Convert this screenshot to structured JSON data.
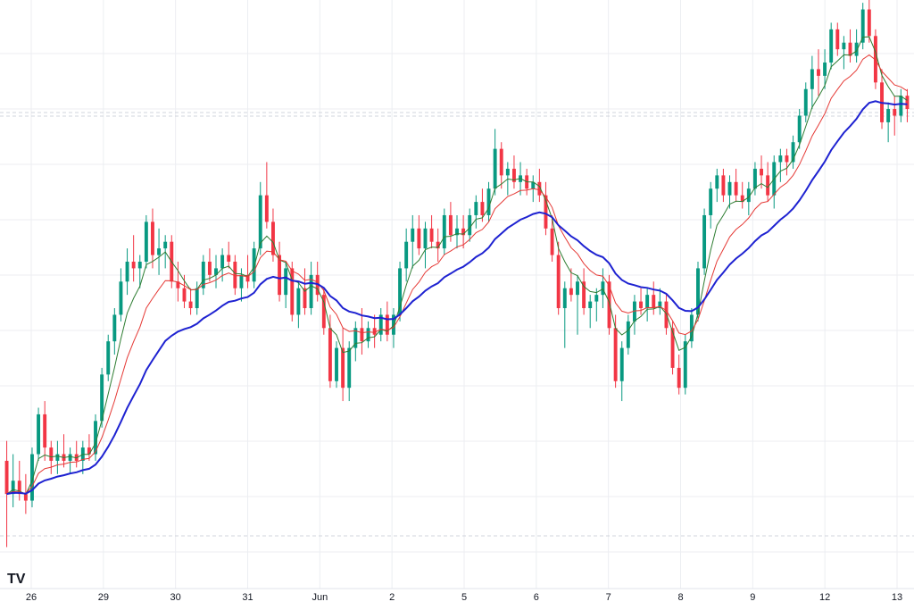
{
  "chart_data": {
    "type": "candlestick",
    "title": "",
    "xlabel": "",
    "ylabel": "",
    "grid": true,
    "colors": {
      "up": "#089981",
      "down": "#f23645",
      "ma_fast": "#2e7d32",
      "ma_mid": "#e53935",
      "ma_slow": "#1e22d1",
      "grid": "#eceef2",
      "dashed_level": "#d1d4dc",
      "background": "#ffffff"
    },
    "x_ticks": [
      "26",
      "29",
      "30",
      "31",
      "Jun",
      "2",
      "5",
      "6",
      "7",
      "8",
      "9",
      "12",
      "13"
    ],
    "price_range": [
      19,
      100
    ],
    "candles": [
      {
        "o": 33,
        "h": 36,
        "l": 20,
        "c": 28
      },
      {
        "o": 28,
        "h": 34,
        "l": 26,
        "c": 30
      },
      {
        "o": 30,
        "h": 33,
        "l": 27,
        "c": 28
      },
      {
        "o": 28,
        "h": 31,
        "l": 25,
        "c": 27
      },
      {
        "o": 27,
        "h": 35,
        "l": 26,
        "c": 34
      },
      {
        "o": 34,
        "h": 41,
        "l": 33,
        "c": 40
      },
      {
        "o": 40,
        "h": 42,
        "l": 33,
        "c": 35
      },
      {
        "o": 35,
        "h": 36,
        "l": 31,
        "c": 33
      },
      {
        "o": 33,
        "h": 36,
        "l": 31,
        "c": 34
      },
      {
        "o": 34,
        "h": 37,
        "l": 32,
        "c": 33
      },
      {
        "o": 33,
        "h": 35,
        "l": 31,
        "c": 34
      },
      {
        "o": 34,
        "h": 36,
        "l": 32,
        "c": 33
      },
      {
        "o": 33,
        "h": 36,
        "l": 31,
        "c": 35
      },
      {
        "o": 35,
        "h": 37,
        "l": 33,
        "c": 34
      },
      {
        "o": 34,
        "h": 40,
        "l": 33,
        "c": 39
      },
      {
        "o": 39,
        "h": 47,
        "l": 38,
        "c": 46
      },
      {
        "o": 46,
        "h": 52,
        "l": 45,
        "c": 51
      },
      {
        "o": 51,
        "h": 56,
        "l": 49,
        "c": 55
      },
      {
        "o": 55,
        "h": 62,
        "l": 54,
        "c": 60
      },
      {
        "o": 60,
        "h": 65,
        "l": 58,
        "c": 63
      },
      {
        "o": 63,
        "h": 67,
        "l": 60,
        "c": 62
      },
      {
        "o": 62,
        "h": 64,
        "l": 59,
        "c": 63
      },
      {
        "o": 63,
        "h": 70,
        "l": 62,
        "c": 69
      },
      {
        "o": 69,
        "h": 71,
        "l": 62,
        "c": 64
      },
      {
        "o": 64,
        "h": 68,
        "l": 61,
        "c": 65
      },
      {
        "o": 65,
        "h": 67,
        "l": 62,
        "c": 66
      },
      {
        "o": 66,
        "h": 67,
        "l": 59,
        "c": 60
      },
      {
        "o": 60,
        "h": 63,
        "l": 57,
        "c": 59
      },
      {
        "o": 59,
        "h": 61,
        "l": 56,
        "c": 57
      },
      {
        "o": 57,
        "h": 59,
        "l": 55,
        "c": 56
      },
      {
        "o": 56,
        "h": 60,
        "l": 55,
        "c": 59
      },
      {
        "o": 59,
        "h": 64,
        "l": 58,
        "c": 63
      },
      {
        "o": 63,
        "h": 65,
        "l": 60,
        "c": 61
      },
      {
        "o": 61,
        "h": 64,
        "l": 59,
        "c": 62
      },
      {
        "o": 62,
        "h": 65,
        "l": 60,
        "c": 64
      },
      {
        "o": 64,
        "h": 66,
        "l": 62,
        "c": 63
      },
      {
        "o": 63,
        "h": 64,
        "l": 58,
        "c": 59
      },
      {
        "o": 59,
        "h": 62,
        "l": 57,
        "c": 61
      },
      {
        "o": 61,
        "h": 64,
        "l": 59,
        "c": 60
      },
      {
        "o": 60,
        "h": 66,
        "l": 59,
        "c": 65
      },
      {
        "o": 65,
        "h": 75,
        "l": 64,
        "c": 73
      },
      {
        "o": 73,
        "h": 78,
        "l": 68,
        "c": 69
      },
      {
        "o": 69,
        "h": 71,
        "l": 63,
        "c": 64
      },
      {
        "o": 64,
        "h": 66,
        "l": 57,
        "c": 58
      },
      {
        "o": 58,
        "h": 63,
        "l": 56,
        "c": 62
      },
      {
        "o": 62,
        "h": 63,
        "l": 54,
        "c": 55
      },
      {
        "o": 55,
        "h": 60,
        "l": 53,
        "c": 59
      },
      {
        "o": 59,
        "h": 62,
        "l": 55,
        "c": 56
      },
      {
        "o": 56,
        "h": 63,
        "l": 55,
        "c": 61
      },
      {
        "o": 61,
        "h": 63,
        "l": 57,
        "c": 58
      },
      {
        "o": 58,
        "h": 59,
        "l": 52,
        "c": 53
      },
      {
        "o": 53,
        "h": 55,
        "l": 44,
        "c": 45
      },
      {
        "o": 45,
        "h": 51,
        "l": 44,
        "c": 50
      },
      {
        "o": 50,
        "h": 53,
        "l": 42,
        "c": 44
      },
      {
        "o": 44,
        "h": 51,
        "l": 42,
        "c": 50
      },
      {
        "o": 50,
        "h": 54,
        "l": 48,
        "c": 53
      },
      {
        "o": 53,
        "h": 56,
        "l": 49,
        "c": 51
      },
      {
        "o": 51,
        "h": 54,
        "l": 50,
        "c": 53
      },
      {
        "o": 53,
        "h": 55,
        "l": 50,
        "c": 52
      },
      {
        "o": 52,
        "h": 56,
        "l": 51,
        "c": 55
      },
      {
        "o": 55,
        "h": 57,
        "l": 51,
        "c": 52
      },
      {
        "o": 52,
        "h": 56,
        "l": 50,
        "c": 55
      },
      {
        "o": 55,
        "h": 63,
        "l": 54,
        "c": 62
      },
      {
        "o": 62,
        "h": 68,
        "l": 60,
        "c": 66
      },
      {
        "o": 66,
        "h": 70,
        "l": 62,
        "c": 68
      },
      {
        "o": 68,
        "h": 70,
        "l": 64,
        "c": 65
      },
      {
        "o": 65,
        "h": 69,
        "l": 62,
        "c": 68
      },
      {
        "o": 68,
        "h": 70,
        "l": 65,
        "c": 66
      },
      {
        "o": 66,
        "h": 68,
        "l": 63,
        "c": 65
      },
      {
        "o": 65,
        "h": 71,
        "l": 64,
        "c": 70
      },
      {
        "o": 70,
        "h": 72,
        "l": 66,
        "c": 67
      },
      {
        "o": 67,
        "h": 70,
        "l": 65,
        "c": 68
      },
      {
        "o": 68,
        "h": 70,
        "l": 65,
        "c": 67
      },
      {
        "o": 67,
        "h": 71,
        "l": 66,
        "c": 70
      },
      {
        "o": 70,
        "h": 73,
        "l": 68,
        "c": 72
      },
      {
        "o": 72,
        "h": 74,
        "l": 69,
        "c": 70
      },
      {
        "o": 70,
        "h": 75,
        "l": 69,
        "c": 74
      },
      {
        "o": 74,
        "h": 83,
        "l": 73,
        "c": 80
      },
      {
        "o": 80,
        "h": 81,
        "l": 74,
        "c": 76
      },
      {
        "o": 76,
        "h": 78,
        "l": 73,
        "c": 77
      },
      {
        "o": 77,
        "h": 79,
        "l": 74,
        "c": 75
      },
      {
        "o": 75,
        "h": 78,
        "l": 73,
        "c": 76
      },
      {
        "o": 76,
        "h": 77,
        "l": 73,
        "c": 74
      },
      {
        "o": 74,
        "h": 76,
        "l": 72,
        "c": 75
      },
      {
        "o": 75,
        "h": 77,
        "l": 72,
        "c": 73
      },
      {
        "o": 73,
        "h": 75,
        "l": 67,
        "c": 68
      },
      {
        "o": 68,
        "h": 70,
        "l": 63,
        "c": 64
      },
      {
        "o": 64,
        "h": 66,
        "l": 55,
        "c": 56
      },
      {
        "o": 56,
        "h": 60,
        "l": 50,
        "c": 59
      },
      {
        "o": 59,
        "h": 62,
        "l": 57,
        "c": 58
      },
      {
        "o": 58,
        "h": 61,
        "l": 52,
        "c": 60
      },
      {
        "o": 60,
        "h": 62,
        "l": 55,
        "c": 56
      },
      {
        "o": 56,
        "h": 58,
        "l": 53,
        "c": 57
      },
      {
        "o": 57,
        "h": 59,
        "l": 54,
        "c": 58
      },
      {
        "o": 58,
        "h": 62,
        "l": 56,
        "c": 60
      },
      {
        "o": 60,
        "h": 61,
        "l": 52,
        "c": 53
      },
      {
        "o": 53,
        "h": 55,
        "l": 44,
        "c": 45
      },
      {
        "o": 45,
        "h": 51,
        "l": 42,
        "c": 50
      },
      {
        "o": 50,
        "h": 55,
        "l": 49,
        "c": 54
      },
      {
        "o": 54,
        "h": 58,
        "l": 52,
        "c": 57
      },
      {
        "o": 57,
        "h": 59,
        "l": 55,
        "c": 56
      },
      {
        "o": 56,
        "h": 59,
        "l": 54,
        "c": 58
      },
      {
        "o": 58,
        "h": 60,
        "l": 55,
        "c": 56
      },
      {
        "o": 56,
        "h": 59,
        "l": 55,
        "c": 57
      },
      {
        "o": 57,
        "h": 58,
        "l": 52,
        "c": 53
      },
      {
        "o": 53,
        "h": 54,
        "l": 46,
        "c": 47
      },
      {
        "o": 47,
        "h": 49,
        "l": 43,
        "c": 44
      },
      {
        "o": 44,
        "h": 52,
        "l": 43,
        "c": 51
      },
      {
        "o": 51,
        "h": 56,
        "l": 50,
        "c": 55
      },
      {
        "o": 55,
        "h": 63,
        "l": 54,
        "c": 62
      },
      {
        "o": 62,
        "h": 71,
        "l": 61,
        "c": 70
      },
      {
        "o": 70,
        "h": 75,
        "l": 68,
        "c": 74
      },
      {
        "o": 74,
        "h": 77,
        "l": 72,
        "c": 76
      },
      {
        "o": 76,
        "h": 77,
        "l": 72,
        "c": 73
      },
      {
        "o": 73,
        "h": 76,
        "l": 71,
        "c": 75
      },
      {
        "o": 75,
        "h": 77,
        "l": 72,
        "c": 73
      },
      {
        "o": 73,
        "h": 75,
        "l": 71,
        "c": 72
      },
      {
        "o": 72,
        "h": 75,
        "l": 70,
        "c": 74
      },
      {
        "o": 74,
        "h": 78,
        "l": 73,
        "c": 77
      },
      {
        "o": 77,
        "h": 79,
        "l": 74,
        "c": 76
      },
      {
        "o": 76,
        "h": 78,
        "l": 72,
        "c": 73
      },
      {
        "o": 73,
        "h": 79,
        "l": 71,
        "c": 78
      },
      {
        "o": 78,
        "h": 80,
        "l": 75,
        "c": 79
      },
      {
        "o": 79,
        "h": 80,
        "l": 76,
        "c": 78
      },
      {
        "o": 78,
        "h": 82,
        "l": 77,
        "c": 81
      },
      {
        "o": 81,
        "h": 86,
        "l": 80,
        "c": 85
      },
      {
        "o": 85,
        "h": 90,
        "l": 84,
        "c": 89
      },
      {
        "o": 89,
        "h": 94,
        "l": 86,
        "c": 92
      },
      {
        "o": 92,
        "h": 95,
        "l": 88,
        "c": 91
      },
      {
        "o": 91,
        "h": 95,
        "l": 89,
        "c": 93
      },
      {
        "o": 93,
        "h": 99,
        "l": 92,
        "c": 98
      },
      {
        "o": 98,
        "h": 99,
        "l": 94,
        "c": 95
      },
      {
        "o": 95,
        "h": 97,
        "l": 92,
        "c": 96
      },
      {
        "o": 96,
        "h": 98,
        "l": 93,
        "c": 94
      },
      {
        "o": 94,
        "h": 98,
        "l": 93,
        "c": 96
      },
      {
        "o": 96,
        "h": 102,
        "l": 95,
        "c": 101
      },
      {
        "o": 101,
        "h": 103,
        "l": 96,
        "c": 97
      },
      {
        "o": 97,
        "h": 98,
        "l": 89,
        "c": 90
      },
      {
        "o": 90,
        "h": 92,
        "l": 83,
        "c": 84
      },
      {
        "o": 84,
        "h": 87,
        "l": 81,
        "c": 86
      },
      {
        "o": 86,
        "h": 88,
        "l": 82,
        "c": 85
      },
      {
        "o": 85,
        "h": 89,
        "l": 84,
        "c": 88
      },
      {
        "o": 88,
        "h": 89,
        "l": 84,
        "c": 86
      }
    ]
  }
}
